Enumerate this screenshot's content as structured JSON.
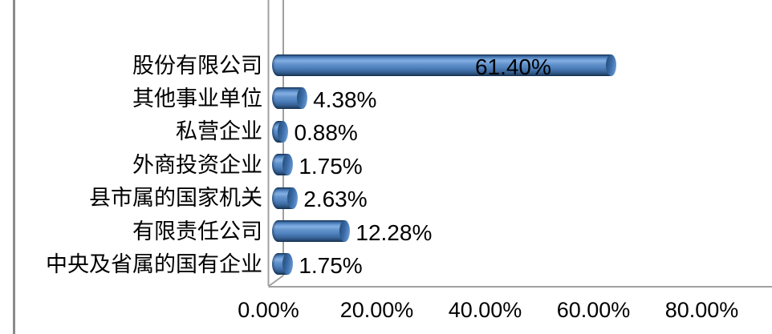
{
  "chart_data": {
    "type": "bar",
    "orientation": "horizontal",
    "bar_style": "3d-cylinder",
    "title": "",
    "categories": [
      "股份有限公司",
      "其他事业单位",
      "私营企业",
      "外商投资企业",
      "县市属的国家机关",
      "有限责任公司",
      "中央及省属的国有企业"
    ],
    "values": [
      61.4,
      4.38,
      0.88,
      1.75,
      2.63,
      12.28,
      1.75
    ],
    "data_labels": [
      "61.40%",
      "4.38%",
      "0.88%",
      "1.75%",
      "2.63%",
      "12.28%",
      "1.75%"
    ],
    "x_ticks": [
      "0.00%",
      "20.00%",
      "40.00%",
      "60.00%",
      "80.00%"
    ],
    "x_tick_values": [
      0,
      20,
      40,
      60,
      80
    ],
    "xlim": [
      0,
      90
    ],
    "ylabel": "",
    "xlabel": "",
    "grid": "off",
    "legend": "off",
    "data_label_position": "outside-end (inside for longest bar)",
    "colors": {
      "bar_fill": "#4f81bd",
      "bar_highlight": "#83afe2",
      "bar_shadow": "#16324f",
      "cap_fill": "#3a6ba6",
      "axis_line": "#a0a0a0",
      "outer_border": "#8a8a8a",
      "text": "#000000",
      "background": "#ffffff"
    }
  }
}
